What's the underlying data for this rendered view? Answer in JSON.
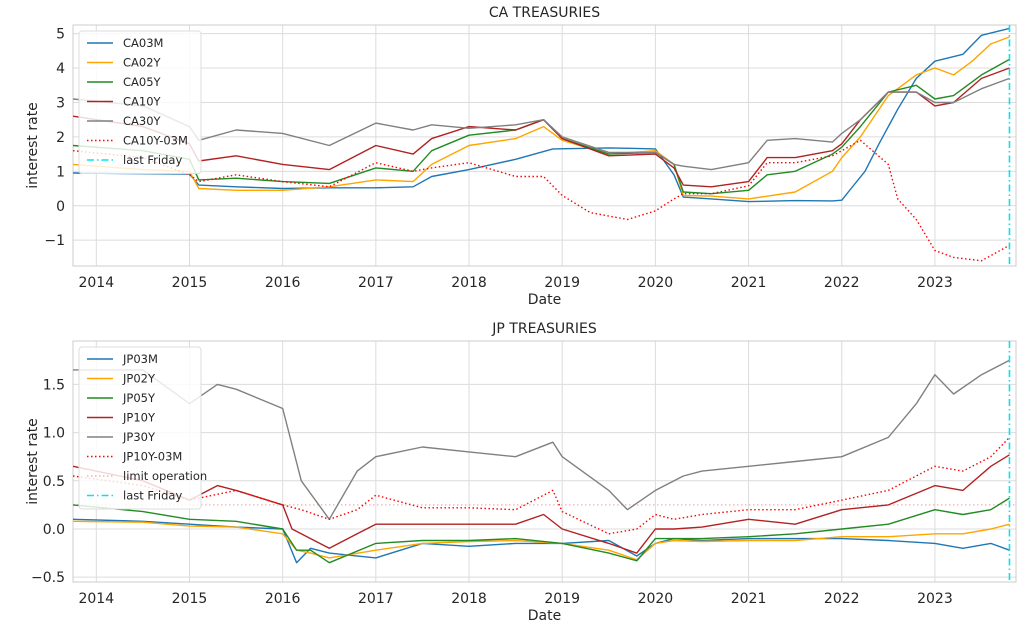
{
  "chart_data": [
    {
      "type": "line",
      "title": "CA TREASURIES",
      "xlabel": "Date",
      "ylabel": "interest rate",
      "xlim": [
        2013.75,
        2023.87
      ],
      "ylim": [
        -1.75,
        5.25
      ],
      "x_ticks": [
        2014,
        2015,
        2016,
        2017,
        2018,
        2019,
        2020,
        2021,
        2022,
        2023
      ],
      "y_ticks": [
        -1,
        0,
        1,
        2,
        3,
        4,
        5
      ],
      "y_tick_labels": [
        "−1",
        "0",
        "1",
        "2",
        "3",
        "4",
        "5"
      ],
      "grid": true,
      "legend_position": "top-left",
      "vline": {
        "name": "last Friday",
        "x": 2023.8,
        "color": "#00e5ee",
        "style": "dashdot"
      },
      "series": [
        {
          "name": "CA03M",
          "color": "#1f77b4",
          "style": "solid",
          "x": [
            2013.75,
            2014.5,
            2015.0,
            2015.1,
            2015.5,
            2016.0,
            2016.5,
            2017.0,
            2017.4,
            2017.6,
            2018.0,
            2018.5,
            2018.9,
            2019.5,
            2020.0,
            2020.2,
            2020.3,
            2020.6,
            2021.0,
            2021.5,
            2021.9,
            2022.0,
            2022.1,
            2022.25,
            2022.4,
            2022.6,
            2022.8,
            2023.0,
            2023.3,
            2023.5,
            2023.8
          ],
          "y": [
            0.95,
            0.93,
            0.92,
            0.6,
            0.55,
            0.5,
            0.52,
            0.52,
            0.55,
            0.85,
            1.05,
            1.35,
            1.65,
            1.68,
            1.65,
            0.9,
            0.25,
            0.2,
            0.12,
            0.15,
            0.14,
            0.16,
            0.5,
            1.0,
            1.8,
            2.8,
            3.7,
            4.2,
            4.4,
            4.95,
            5.15
          ]
        },
        {
          "name": "CA02Y",
          "color": "#ffa500",
          "style": "solid",
          "x": [
            2013.75,
            2014.5,
            2015.0,
            2015.1,
            2015.5,
            2016.0,
            2016.5,
            2017.0,
            2017.4,
            2017.6,
            2018.0,
            2018.5,
            2018.8,
            2019.0,
            2019.5,
            2020.0,
            2020.2,
            2020.3,
            2020.6,
            2021.0,
            2021.5,
            2021.9,
            2022.0,
            2022.2,
            2022.5,
            2022.8,
            2023.0,
            2023.2,
            2023.4,
            2023.6,
            2023.8
          ],
          "y": [
            1.2,
            1.05,
            1.0,
            0.5,
            0.45,
            0.45,
            0.55,
            0.75,
            0.7,
            1.2,
            1.75,
            1.95,
            2.3,
            1.9,
            1.5,
            1.6,
            1.2,
            0.3,
            0.28,
            0.2,
            0.4,
            1.0,
            1.4,
            2.0,
            3.2,
            3.8,
            4.0,
            3.8,
            4.2,
            4.7,
            4.9
          ]
        },
        {
          "name": "CA05Y",
          "color": "#228b22",
          "style": "solid",
          "x": [
            2013.75,
            2014.5,
            2015.0,
            2015.1,
            2015.5,
            2016.0,
            2016.5,
            2017.0,
            2017.4,
            2017.6,
            2018.0,
            2018.5,
            2018.8,
            2019.0,
            2019.5,
            2020.0,
            2020.2,
            2020.3,
            2020.6,
            2021.0,
            2021.2,
            2021.5,
            2021.9,
            2022.0,
            2022.2,
            2022.5,
            2022.8,
            2023.0,
            2023.2,
            2023.5,
            2023.8
          ],
          "y": [
            1.75,
            1.6,
            1.35,
            0.75,
            0.8,
            0.7,
            0.65,
            1.1,
            1.0,
            1.6,
            2.05,
            2.2,
            2.5,
            1.95,
            1.5,
            1.55,
            1.2,
            0.4,
            0.35,
            0.45,
            0.9,
            1.0,
            1.5,
            1.7,
            2.3,
            3.3,
            3.5,
            3.1,
            3.2,
            3.8,
            4.25
          ]
        },
        {
          "name": "CA10Y",
          "color": "#b22222",
          "style": "solid",
          "x": [
            2013.75,
            2014.5,
            2015.0,
            2015.1,
            2015.5,
            2016.0,
            2016.5,
            2017.0,
            2017.4,
            2017.6,
            2018.0,
            2018.5,
            2018.8,
            2019.0,
            2019.5,
            2020.0,
            2020.2,
            2020.3,
            2020.6,
            2021.0,
            2021.2,
            2021.5,
            2021.9,
            2022.0,
            2022.2,
            2022.5,
            2022.8,
            2023.0,
            2023.2,
            2023.5,
            2023.8
          ],
          "y": [
            2.6,
            2.3,
            1.8,
            1.3,
            1.45,
            1.2,
            1.05,
            1.75,
            1.5,
            1.95,
            2.3,
            2.2,
            2.5,
            1.95,
            1.45,
            1.5,
            1.1,
            0.6,
            0.55,
            0.7,
            1.4,
            1.4,
            1.6,
            1.8,
            2.5,
            3.3,
            3.3,
            2.9,
            3.0,
            3.7,
            4.0
          ]
        },
        {
          "name": "CA30Y",
          "color": "#808080",
          "style": "solid",
          "x": [
            2013.75,
            2014.5,
            2015.0,
            2015.1,
            2015.5,
            2016.0,
            2016.5,
            2017.0,
            2017.4,
            2017.6,
            2018.0,
            2018.5,
            2018.8,
            2019.0,
            2019.5,
            2020.0,
            2020.2,
            2020.3,
            2020.6,
            2021.0,
            2021.2,
            2021.5,
            2021.9,
            2022.0,
            2022.2,
            2022.5,
            2022.8,
            2023.0,
            2023.2,
            2023.5,
            2023.8
          ],
          "y": [
            3.1,
            2.9,
            2.3,
            1.9,
            2.2,
            2.1,
            1.75,
            2.4,
            2.2,
            2.35,
            2.25,
            2.35,
            2.5,
            2.0,
            1.55,
            1.55,
            1.2,
            1.15,
            1.05,
            1.25,
            1.9,
            1.95,
            1.85,
            2.1,
            2.5,
            3.3,
            3.3,
            3.0,
            3.0,
            3.4,
            3.7
          ]
        },
        {
          "name": "CA10Y-03M",
          "color": "#ff0000",
          "style": "dotted",
          "x": [
            2013.75,
            2014.5,
            2015.0,
            2015.1,
            2015.5,
            2016.0,
            2016.5,
            2017.0,
            2017.4,
            2017.6,
            2018.0,
            2018.5,
            2018.8,
            2019.0,
            2019.3,
            2019.7,
            2020.0,
            2020.2,
            2020.3,
            2020.6,
            2021.0,
            2021.2,
            2021.5,
            2021.9,
            2022.0,
            2022.2,
            2022.5,
            2022.6,
            2022.8,
            2023.0,
            2023.2,
            2023.5,
            2023.8
          ],
          "y": [
            1.6,
            1.4,
            0.9,
            0.7,
            0.9,
            0.7,
            0.55,
            1.25,
            1.0,
            1.1,
            1.25,
            0.85,
            0.85,
            0.3,
            -0.2,
            -0.4,
            -0.15,
            0.2,
            0.35,
            0.35,
            0.58,
            1.25,
            1.25,
            1.45,
            1.6,
            1.9,
            1.2,
            0.2,
            -0.4,
            -1.3,
            -1.5,
            -1.6,
            -1.15
          ]
        }
      ]
    },
    {
      "type": "line",
      "title": "JP TREASURIES",
      "xlabel": "Date",
      "ylabel": "interest rate",
      "xlim": [
        2013.75,
        2023.87
      ],
      "ylim": [
        -0.55,
        1.95
      ],
      "x_ticks": [
        2014,
        2015,
        2016,
        2017,
        2018,
        2019,
        2020,
        2021,
        2022,
        2023
      ],
      "y_ticks": [
        -0.5,
        0.0,
        0.5,
        1.0,
        1.5
      ],
      "y_tick_labels": [
        "−0.5",
        "0.0",
        "0.5",
        "1.0",
        "1.5"
      ],
      "grid": true,
      "legend_position": "top-left",
      "hline": {
        "name": "limit operation",
        "y": 0.25,
        "color": "#ffaaaa",
        "style": "dotted"
      },
      "vline": {
        "name": "last Friday",
        "x": 2023.8,
        "color": "#00e5ee",
        "style": "dashdot"
      },
      "series": [
        {
          "name": "JP03M",
          "color": "#1f77b4",
          "style": "solid",
          "x": [
            2013.75,
            2014.5,
            2015.0,
            2015.5,
            2016.0,
            2016.15,
            2016.3,
            2016.5,
            2017.0,
            2017.5,
            2018.0,
            2018.5,
            2019.0,
            2019.5,
            2019.8,
            2020.0,
            2020.2,
            2020.5,
            2021.0,
            2021.5,
            2022.0,
            2022.5,
            2023.0,
            2023.3,
            2023.6,
            2023.8
          ],
          "y": [
            0.1,
            0.08,
            0.05,
            0.02,
            0.0,
            -0.35,
            -0.2,
            -0.25,
            -0.3,
            -0.15,
            -0.18,
            -0.15,
            -0.15,
            -0.12,
            -0.28,
            -0.15,
            -0.1,
            -0.12,
            -0.1,
            -0.1,
            -0.1,
            -0.12,
            -0.15,
            -0.2,
            -0.15,
            -0.22
          ]
        },
        {
          "name": "JP02Y",
          "color": "#ffa500",
          "style": "solid",
          "x": [
            2013.75,
            2014.5,
            2015.0,
            2015.5,
            2016.0,
            2016.15,
            2016.3,
            2016.5,
            2017.0,
            2017.5,
            2018.0,
            2018.5,
            2019.0,
            2019.5,
            2019.8,
            2020.0,
            2020.2,
            2020.5,
            2021.0,
            2021.5,
            2022.0,
            2022.5,
            2023.0,
            2023.3,
            2023.6,
            2023.8
          ],
          "y": [
            0.08,
            0.07,
            0.03,
            0.02,
            -0.05,
            -0.22,
            -0.25,
            -0.3,
            -0.22,
            -0.15,
            -0.13,
            -0.12,
            -0.15,
            -0.22,
            -0.32,
            -0.15,
            -0.12,
            -0.13,
            -0.12,
            -0.12,
            -0.08,
            -0.08,
            -0.05,
            -0.05,
            0.0,
            0.05
          ]
        },
        {
          "name": "JP05Y",
          "color": "#228b22",
          "style": "solid",
          "x": [
            2013.75,
            2014.5,
            2015.0,
            2015.5,
            2016.0,
            2016.15,
            2016.3,
            2016.5,
            2017.0,
            2017.5,
            2018.0,
            2018.5,
            2019.0,
            2019.5,
            2019.8,
            2020.0,
            2020.2,
            2020.5,
            2021.0,
            2021.5,
            2022.0,
            2022.5,
            2023.0,
            2023.3,
            2023.6,
            2023.8
          ],
          "y": [
            0.25,
            0.18,
            0.1,
            0.08,
            0.0,
            -0.22,
            -0.22,
            -0.35,
            -0.15,
            -0.12,
            -0.12,
            -0.1,
            -0.15,
            -0.25,
            -0.33,
            -0.1,
            -0.1,
            -0.1,
            -0.08,
            -0.05,
            0.0,
            0.05,
            0.2,
            0.15,
            0.2,
            0.32
          ]
        },
        {
          "name": "JP10Y",
          "color": "#b22222",
          "style": "solid",
          "x": [
            2013.75,
            2014.5,
            2015.0,
            2015.3,
            2015.5,
            2016.0,
            2016.1,
            2016.3,
            2016.5,
            2016.8,
            2017.0,
            2017.5,
            2018.0,
            2018.5,
            2018.8,
            2019.0,
            2019.5,
            2019.8,
            2020.0,
            2020.2,
            2020.5,
            2021.0,
            2021.5,
            2022.0,
            2022.5,
            2023.0,
            2023.3,
            2023.6,
            2023.8
          ],
          "y": [
            0.65,
            0.5,
            0.3,
            0.45,
            0.4,
            0.25,
            0.0,
            -0.1,
            -0.2,
            -0.05,
            0.05,
            0.05,
            0.05,
            0.05,
            0.15,
            0.0,
            -0.15,
            -0.25,
            0.0,
            0.0,
            0.02,
            0.1,
            0.05,
            0.2,
            0.25,
            0.45,
            0.4,
            0.65,
            0.77
          ]
        },
        {
          "name": "JP30Y",
          "color": "#808080",
          "style": "solid",
          "x": [
            2013.75,
            2014.5,
            2015.0,
            2015.3,
            2015.5,
            2016.0,
            2016.2,
            2016.5,
            2016.8,
            2017.0,
            2017.5,
            2018.0,
            2018.5,
            2018.9,
            2019.0,
            2019.5,
            2019.7,
            2020.0,
            2020.3,
            2020.5,
            2021.0,
            2021.5,
            2022.0,
            2022.5,
            2022.8,
            2023.0,
            2023.2,
            2023.5,
            2023.8
          ],
          "y": [
            1.65,
            1.65,
            1.3,
            1.5,
            1.45,
            1.25,
            0.5,
            0.1,
            0.6,
            0.75,
            0.85,
            0.8,
            0.75,
            0.9,
            0.75,
            0.4,
            0.2,
            0.4,
            0.55,
            0.6,
            0.65,
            0.7,
            0.75,
            0.95,
            1.3,
            1.6,
            1.4,
            1.6,
            1.75
          ]
        },
        {
          "name": "JP10Y-03M",
          "color": "#ff0000",
          "style": "dotted",
          "x": [
            2013.75,
            2014.5,
            2015.0,
            2015.5,
            2016.0,
            2016.2,
            2016.5,
            2016.8,
            2017.0,
            2017.5,
            2018.0,
            2018.5,
            2018.9,
            2019.0,
            2019.5,
            2019.8,
            2020.0,
            2020.2,
            2020.5,
            2021.0,
            2021.5,
            2022.0,
            2022.5,
            2023.0,
            2023.3,
            2023.6,
            2023.8
          ],
          "y": [
            0.55,
            0.45,
            0.3,
            0.4,
            0.25,
            0.2,
            0.1,
            0.2,
            0.35,
            0.22,
            0.22,
            0.2,
            0.4,
            0.18,
            -0.05,
            0.0,
            0.15,
            0.1,
            0.15,
            0.2,
            0.2,
            0.3,
            0.4,
            0.65,
            0.6,
            0.75,
            0.95
          ]
        }
      ]
    }
  ]
}
